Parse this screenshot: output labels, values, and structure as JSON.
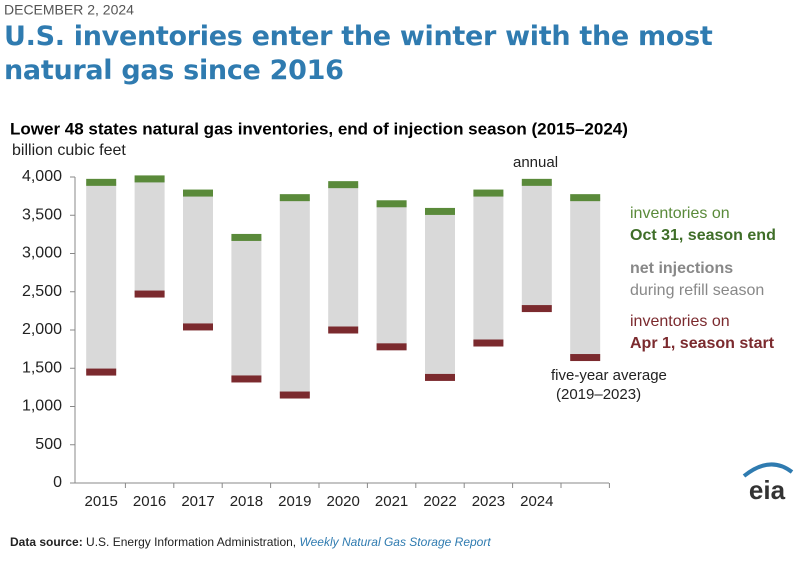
{
  "date": "DECEMBER 2, 2024",
  "headline": "U.S. inventories enter the winter with the most natural gas since 2016",
  "source": {
    "label": "Data source:",
    "text": "U.S. Energy Information Administration, ",
    "link": "Weekly Natural Gas Storage Report"
  },
  "logo": "eia",
  "chart_data": {
    "type": "floating-bar",
    "title": "Lower 48 states natural gas inventories, end of injection season (2015–2024)",
    "y_label": "billion cubic feet",
    "categories": [
      "2015",
      "2016",
      "2017",
      "2018",
      "2019",
      "2020",
      "2021",
      "2022",
      "2023",
      "2024",
      null
    ],
    "series": [
      {
        "name": [
          "inventories on",
          "Oct 31, season end"
        ],
        "color": "#5a8a3a",
        "values": [
          3930,
          3975,
          3790,
          3210,
          3730,
          3900,
          3650,
          3550,
          3790,
          3930,
          3730
        ]
      },
      {
        "name": [
          "net injections",
          "during refill season"
        ],
        "color": "#d9d9d9"
      },
      {
        "name": [
          "inventories on",
          "Apr 1, season start"
        ],
        "color": "#7b2a2e",
        "values": [
          1450,
          2470,
          2040,
          1360,
          1150,
          2000,
          1780,
          1380,
          1830,
          2280,
          1640
        ]
      }
    ],
    "annotations": [
      "annual",
      "five-year average",
      "(2019–2023)"
    ],
    "ylim": [
      0,
      4000
    ],
    "yticks": [
      0,
      500,
      {
        "value": 1000,
        "label": "1,000"
      },
      {
        "value": 1500,
        "label": "1,500"
      },
      {
        "value": 2000,
        "label": "2,000"
      },
      {
        "value": 2500,
        "label": "2,500"
      },
      {
        "value": 3000,
        "label": "3,000"
      },
      {
        "value": 3500,
        "label": "3,500"
      },
      {
        "value": 4000,
        "label": "4,000"
      }
    ],
    "grid": false
  }
}
